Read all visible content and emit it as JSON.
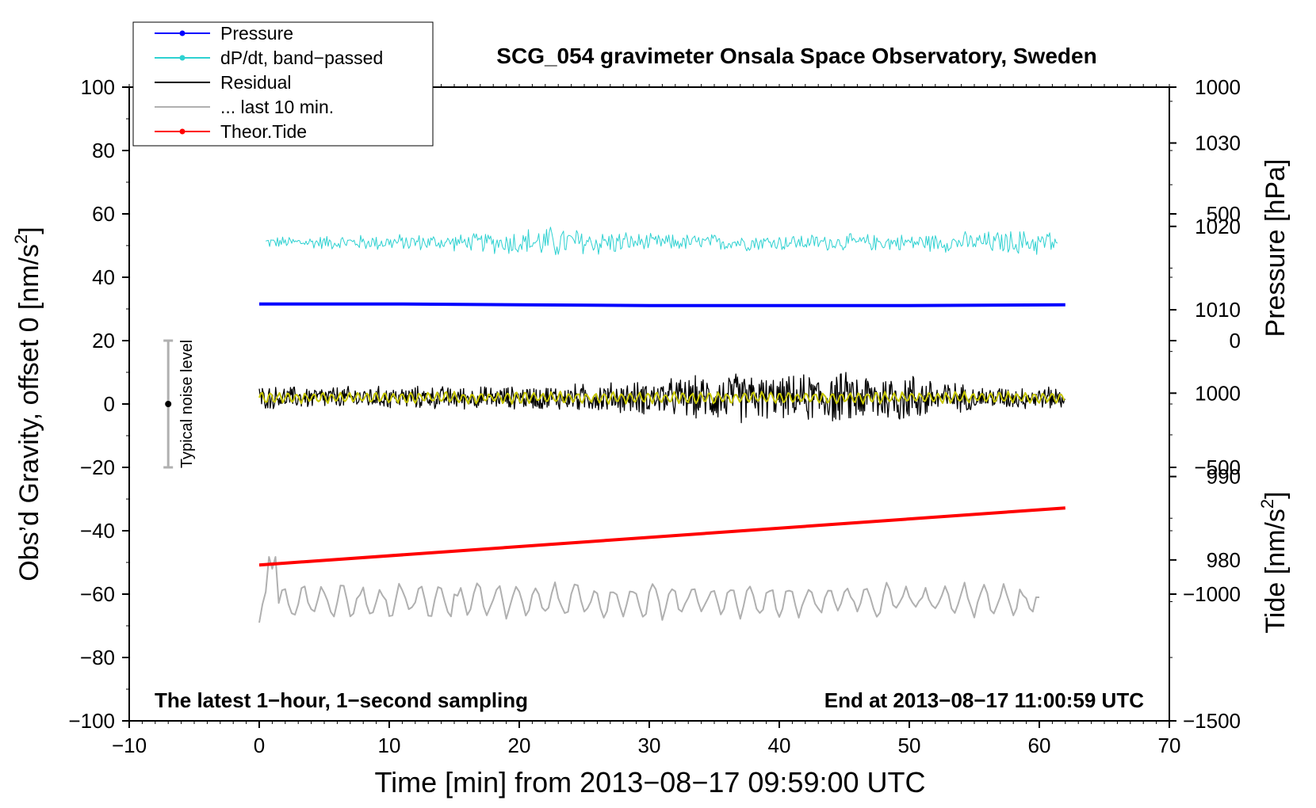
{
  "chart_data": {
    "type": "line",
    "title": "SCG_054 gravimeter Onsala Space Observatory, Sweden",
    "xlabel": "Time [min] from 2013−08−17 09:59:00 UTC",
    "ylabel_left_main": "Obs’d Gravity, offset 0 [nm/s",
    "ylabel_left_sup": "2",
    "ylabel_left_end": "]",
    "ylabel_right_pressure": "Pressure [hPa]",
    "ylabel_right_tide_main": "Tide [nm/s",
    "ylabel_right_tide_sup": "2",
    "ylabel_right_tide_end": "]",
    "xlim": [
      -10,
      70
    ],
    "ylim": [
      -100,
      100
    ],
    "pressure_lim": [
      960.7,
      1036.7
    ],
    "tide_lim": [
      -1500,
      1000
    ],
    "x_ticks": [
      "−10",
      "0",
      "10",
      "20",
      "30",
      "40",
      "50",
      "60",
      "70"
    ],
    "x_tick_values": [
      -10,
      0,
      10,
      20,
      30,
      40,
      50,
      60,
      70
    ],
    "y_ticks": [
      "100",
      "80",
      "60",
      "40",
      "20",
      "0",
      "−20",
      "−40",
      "−60",
      "−80",
      "−100"
    ],
    "y_tick_values": [
      100,
      80,
      60,
      40,
      20,
      0,
      -20,
      -40,
      -60,
      -80,
      -100
    ],
    "pressure_ticks": [
      "1030",
      "1020",
      "1010",
      "1000",
      "990",
      "980"
    ],
    "pressure_tick_values": [
      1030,
      1020,
      1010,
      1000,
      990,
      980
    ],
    "tide_ticks": [
      "1000",
      "500",
      "0",
      "−500",
      "−1000",
      "−1500"
    ],
    "tide_tick_values": [
      1000,
      500,
      0,
      -500,
      -1000,
      -1500
    ],
    "legend_position": "top-left",
    "legend": [
      {
        "label": "Pressure",
        "color": "#0000ff",
        "marker": true
      },
      {
        "label": "dP/dt, band−passed",
        "color": "#2ed1d1",
        "marker": true
      },
      {
        "label": "Residual",
        "color": "#000000",
        "marker": false
      },
      {
        "label": "... last 10 min.",
        "color": "#b0b0b0",
        "marker": false
      },
      {
        "label": "Theor.Tide",
        "color": "#ff0000",
        "marker": true
      }
    ],
    "annotation_left": "The latest 1−hour, 1−second sampling",
    "annotation_right": "End at 2013−08−17 11:00:59 UTC",
    "noise_label": "Typical noise level",
    "noise_bar": {
      "x": -7,
      "center": 0,
      "low": -20,
      "high": 20
    },
    "series": [
      {
        "name": "Pressure",
        "color": "#0000ff",
        "axis": "pressure",
        "x": [
          0,
          10,
          20,
          30,
          40,
          50,
          62
        ],
        "values": [
          1010.7,
          1010.7,
          1010.6,
          1010.5,
          1010.5,
          1010.5,
          1010.6
        ]
      },
      {
        "name": "dP/dt, band−passed",
        "color": "#2ed1d1",
        "axis": "gravity",
        "x_range": [
          0.5,
          61.5
        ],
        "baseline": 51,
        "amplitude_envelope": {
          "x": [
            0,
            10,
            16,
            22,
            26,
            30,
            40,
            50,
            56,
            61.5
          ],
          "amp": [
            2,
            3,
            3,
            6,
            5,
            3,
            3,
            3,
            4,
            5
          ]
        }
      },
      {
        "name": "Residual",
        "color": "#000000",
        "axis": "gravity",
        "x_range": [
          0,
          62
        ],
        "baseline": 2,
        "amplitude_envelope": {
          "x": [
            0,
            10,
            20,
            30,
            37,
            40,
            43,
            50,
            55,
            62
          ],
          "amp": [
            4,
            4,
            4,
            6,
            9,
            7,
            9,
            9,
            4,
            4
          ]
        }
      },
      {
        "name": "Residual (smoothed)",
        "color": "#c8c800",
        "axis": "gravity",
        "x_range": [
          0,
          62
        ],
        "baseline": 2,
        "amplitude": 2
      },
      {
        "name": "... last 10 min.",
        "color": "#b0b0b0",
        "axis": "gravity",
        "x_range": [
          0,
          60
        ],
        "baseline": -62,
        "amplitude": 5,
        "start_value": -69,
        "peak": {
          "x": 1,
          "y": -52
        },
        "end_value": -61
      },
      {
        "name": "Theor.Tide",
        "color": "#ff0000",
        "axis": "tide",
        "x": [
          0,
          62
        ],
        "values": [
          -885,
          -660
        ]
      }
    ]
  }
}
